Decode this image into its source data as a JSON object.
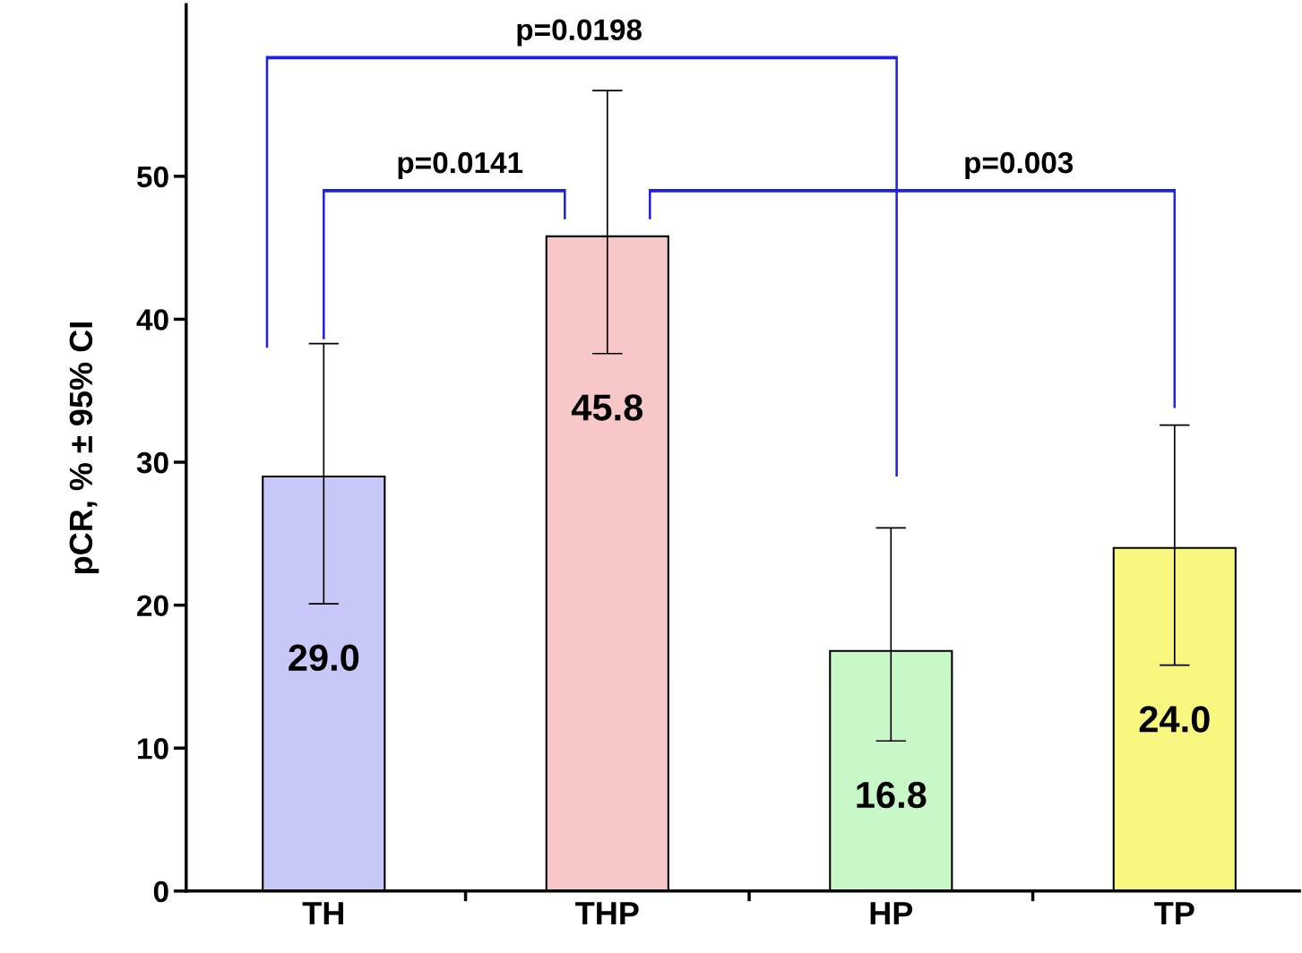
{
  "chart_data": {
    "type": "bar",
    "ylabel": "pCR, % ± 95% CI",
    "categories": [
      "TH",
      "THP",
      "HP",
      "TP"
    ],
    "values": [
      29.0,
      45.8,
      16.8,
      24.0
    ],
    "colors": [
      "#c8c8f8",
      "#f8c8c8",
      "#c8f8c8",
      "#f8f880"
    ],
    "errors": [
      [
        20.1,
        38.3
      ],
      [
        37.6,
        56.0
      ],
      [
        10.5,
        25.4
      ],
      [
        15.8,
        32.6
      ]
    ],
    "value_labels": [
      "29.0",
      "45.8",
      "16.8",
      "24.0"
    ],
    "ylim": [
      0,
      62
    ],
    "yticks": [
      0,
      10,
      20,
      30,
      40,
      50
    ],
    "grid": false,
    "annotations": [
      "p=0.0198",
      "p=0.0141",
      "p=0.003"
    ]
  }
}
